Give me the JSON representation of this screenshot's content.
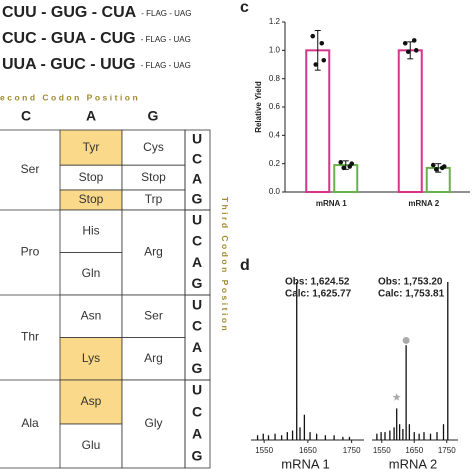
{
  "codon_lines": [
    {
      "text": "CUU - GUG - CUA",
      "tail": "- FLAG - UAG",
      "color": "#6aaa3a"
    },
    {
      "text": "CUC - GUA - CUG",
      "tail": "- FLAG - UAG",
      "color": "#e8802e"
    },
    {
      "text": "UUA - GUC - UUG",
      "tail": "- FLAG - UAG",
      "color": "#1fa8d6"
    }
  ],
  "codon_table": {
    "second_title": "econd Codon Position",
    "third_title": "Third Codon Position",
    "columns": [
      "C",
      "A",
      "G"
    ],
    "groups": [
      {
        "label": "Ser",
        "a": [
          {
            "text": "Tyr",
            "highlight": true
          },
          {
            "text": "Stop",
            "highlight": false
          },
          {
            "text": "Stop",
            "highlight": true
          }
        ],
        "g": [
          {
            "text": "Cys",
            "highlight": false
          },
          {
            "text": "Stop",
            "highlight": false
          },
          {
            "text": "Trp",
            "highlight": false
          }
        ],
        "third": [
          "U",
          "C",
          "A",
          "G"
        ]
      },
      {
        "label": "Pro",
        "a": [
          {
            "text": "His",
            "highlight": false
          },
          {
            "text": "Gln",
            "highlight": false
          }
        ],
        "g": [
          {
            "text": "Arg",
            "highlight": false
          }
        ],
        "third": [
          "U",
          "C",
          "A",
          "G"
        ]
      },
      {
        "label": "Thr",
        "a": [
          {
            "text": "Asn",
            "highlight": false
          },
          {
            "text": "Lys",
            "highlight": true
          }
        ],
        "g": [
          {
            "text": "Ser",
            "highlight": false
          },
          {
            "text": "Arg",
            "highlight": false
          }
        ],
        "third": [
          "U",
          "C",
          "A",
          "G"
        ]
      },
      {
        "label": "Ala",
        "a": [
          {
            "text": "Asp",
            "highlight": true
          },
          {
            "text": "Glu",
            "highlight": false
          }
        ],
        "g": [
          {
            "text": "Gly",
            "highlight": false
          }
        ],
        "third": [
          "U",
          "C",
          "A",
          "G"
        ]
      }
    ],
    "highlight_color": "#fbd98a"
  },
  "chart_data": [
    {
      "type": "bar",
      "panel": "c",
      "ylabel": "Relative Yield",
      "categories": [
        "mRNA 1",
        "mRNA 2"
      ],
      "ylim": [
        0,
        1.2
      ],
      "yticks": [
        {
          "value": 0,
          "label": "0.0"
        },
        {
          "value": 0.2,
          "label": "0.2"
        },
        {
          "value": 0.4,
          "label": "0.4"
        },
        {
          "value": 0.6,
          "label": "0.6"
        },
        {
          "value": 0.8,
          "label": "0.8"
        },
        {
          "value": 1,
          "label": "1.0"
        },
        {
          "value": 1.2,
          "label": "1.2"
        }
      ],
      "series": [
        {
          "color": "#d6338a",
          "values": [
            1.0,
            1.0
          ],
          "errors": [
            0.14,
            0.06
          ],
          "points": [
            [
              1.1,
              1.05,
              0.9,
              0.93
            ],
            [
              1.05,
              1.07,
              0.99,
              1.0
            ]
          ]
        },
        {
          "color": "#6ab04c",
          "values": [
            0.19,
            0.17
          ],
          "errors": [
            0.03,
            0.03
          ],
          "points": [
            [
              0.21,
              0.18,
              0.17,
              0.2
            ],
            [
              0.19,
              0.17,
              0.16,
              0.18
            ]
          ]
        }
      ]
    },
    {
      "type": "spectrum",
      "panel": "d",
      "xlim": [
        1520,
        1760
      ],
      "xticks": [
        1550,
        1650,
        1750
      ],
      "color": "#111",
      "spectra": [
        {
          "name": "mRNA 1",
          "annotations": [
            "Obs: 1,624.52",
            "Calc: 1,625.77"
          ],
          "x": [
            1535,
            1548,
            1560,
            1575,
            1590,
            1603,
            1615,
            1624.52,
            1632,
            1642,
            1655,
            1670,
            1690,
            1710,
            1730,
            1745
          ],
          "values": [
            0.03,
            0.04,
            0.03,
            0.04,
            0.03,
            0.05,
            0.06,
            1.0,
            0.08,
            0.16,
            0.05,
            0.04,
            0.03,
            0.03,
            0.02,
            0.02
          ],
          "markers": []
        },
        {
          "name": "mRNA 2",
          "annotations": [
            "Obs: 1,753.20",
            "Calc: 1,753.81"
          ],
          "x": [
            1535,
            1548,
            1560,
            1575,
            1588,
            1596,
            1605,
            1615,
            1625,
            1635,
            1650,
            1665,
            1680,
            1700,
            1720,
            1740,
            1753.2
          ],
          "values": [
            0.04,
            0.05,
            0.05,
            0.06,
            0.08,
            0.2,
            0.1,
            0.07,
            0.6,
            0.1,
            0.05,
            0.04,
            0.05,
            0.04,
            0.05,
            0.1,
            1.0
          ],
          "markers": [
            {
              "x": 1596,
              "y": 0.27,
              "shape": "star",
              "color": "#aaa"
            },
            {
              "x": 1625,
              "y": 0.63,
              "shape": "circle",
              "color": "#aaa"
            }
          ]
        }
      ]
    }
  ]
}
